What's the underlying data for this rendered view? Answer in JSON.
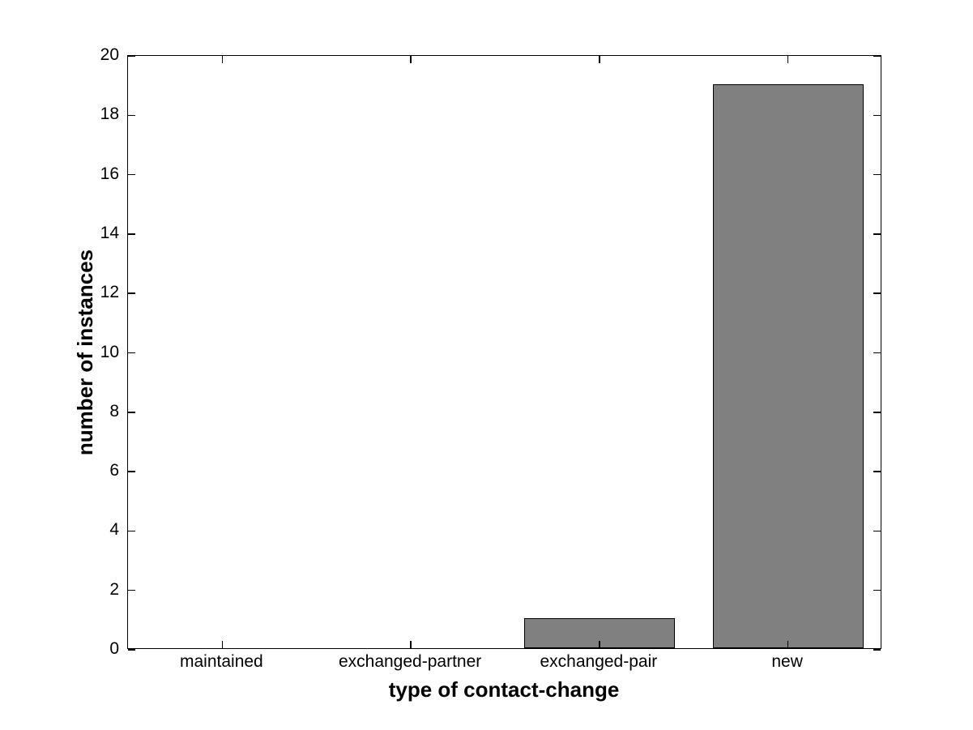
{
  "chart_data": {
    "type": "bar",
    "categories": [
      "maintained",
      "exchanged-partner",
      "exchanged-pair",
      "new"
    ],
    "values": [
      0,
      0,
      1,
      19
    ],
    "title": "",
    "xlabel": "type of contact-change",
    "ylabel": "number of instances",
    "ylim": [
      0,
      20
    ],
    "ytick_step": 2,
    "yticks": [
      0,
      2,
      4,
      6,
      8,
      10,
      12,
      14,
      16,
      18,
      20
    ],
    "bar_width_fraction": 0.8,
    "grid": false,
    "legend_position": "none",
    "colors": {
      "bar_fill": "#808080",
      "bar_edge": "#000000",
      "axis": "#000000",
      "text": "#000000",
      "background": "#ffffff"
    }
  }
}
